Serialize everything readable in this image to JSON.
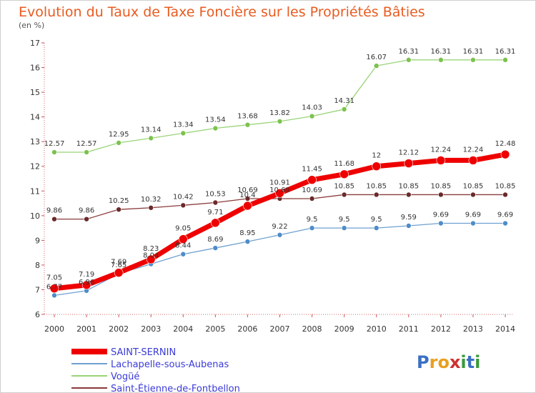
{
  "title": "Evolution du Taux de Taxe Foncière sur les Propriétés Bâties",
  "subtitle": "(en %)",
  "brand": {
    "text": "Proxiti",
    "letters": [
      "P",
      "r",
      "o",
      "x",
      "i",
      "t",
      "i"
    ],
    "colors": [
      "#3a6fc4",
      "#e8a020",
      "#e8a020",
      "#d03030",
      "#3a9a3a",
      "#3a6fc4",
      "#3a9a3a"
    ]
  },
  "chart_data": {
    "type": "line",
    "title": "Evolution du Taux de Taxe Foncière sur les Propriétés Bâties",
    "ylabel": "(en %)",
    "xlabel": "",
    "x": [
      "2000",
      "2001",
      "2002",
      "2003",
      "2004",
      "2005",
      "2006",
      "2007",
      "2008",
      "2009",
      "2010",
      "2011",
      "2012",
      "2013",
      "2014"
    ],
    "ylim": [
      6,
      17
    ],
    "yticks": [
      6,
      7,
      8,
      9,
      10,
      11,
      12,
      13,
      14,
      15,
      16,
      17
    ],
    "grid": false,
    "legend_position": "bottom-left",
    "series": [
      {
        "name": "SAINT-SERNIN",
        "color": "#ee0000",
        "marker": "#ee0000",
        "width": 7,
        "radius": 6,
        "values": [
          7.05,
          7.19,
          7.69,
          8.23,
          9.05,
          9.71,
          10.4,
          10.91,
          11.45,
          11.68,
          12.0,
          12.12,
          12.24,
          12.24,
          12.48
        ],
        "labels": [
          "7.05",
          "7.19",
          "7.69",
          "8.23",
          "9.05",
          "9.71",
          "10.4",
          "10.91",
          "11.45",
          "11.68",
          "12",
          "12.12",
          "12.24",
          "12.24",
          "12.48"
        ]
      },
      {
        "name": "Lachapelle-sous-Aubenas",
        "color": "#6fa0d0",
        "marker": "#4d8cc8",
        "width": 1.3,
        "radius": 3.5,
        "values": [
          6.77,
          6.96,
          7.65,
          8.04,
          8.44,
          8.69,
          8.95,
          9.22,
          9.5,
          9.5,
          9.5,
          9.59,
          9.69,
          9.69,
          9.69
        ],
        "labels": [
          "6.77",
          "6.96",
          "7.65",
          "8.04",
          "8.44",
          "8.69",
          "8.95",
          "9.22",
          "9.5",
          "9.5",
          "9.5",
          "9.59",
          "9.69",
          "9.69",
          "9.69"
        ]
      },
      {
        "name": "Vogüé",
        "color": "#99d477",
        "marker": "#7cc24e",
        "width": 1.3,
        "radius": 3.5,
        "values": [
          12.57,
          12.57,
          12.95,
          13.14,
          13.34,
          13.54,
          13.68,
          13.82,
          14.03,
          14.31,
          16.07,
          16.31,
          16.31,
          16.31,
          16.31
        ],
        "labels": [
          "12.57",
          "12.57",
          "12.95",
          "13.14",
          "13.34",
          "13.54",
          "13.68",
          "13.82",
          "14.03",
          "14.31",
          "16.07",
          "16.31",
          "16.31",
          "16.31",
          "16.31"
        ]
      },
      {
        "name": "Saint-Étienne-de-Fontbellon",
        "color": "#8a3a3a",
        "marker": "#6a2a2a",
        "width": 1.3,
        "radius": 3.5,
        "values": [
          9.86,
          9.86,
          10.25,
          10.32,
          10.42,
          10.53,
          10.69,
          10.69,
          10.69,
          10.85,
          10.85,
          10.85,
          10.85,
          10.85,
          10.85
        ],
        "labels": [
          "9.86",
          "9.86",
          "10.25",
          "10.32",
          "10.42",
          "10.53",
          "10.69",
          "10.69",
          "10.69",
          "10.85",
          "10.85",
          "10.85",
          "10.85",
          "10.85",
          "10.85"
        ]
      }
    ]
  }
}
